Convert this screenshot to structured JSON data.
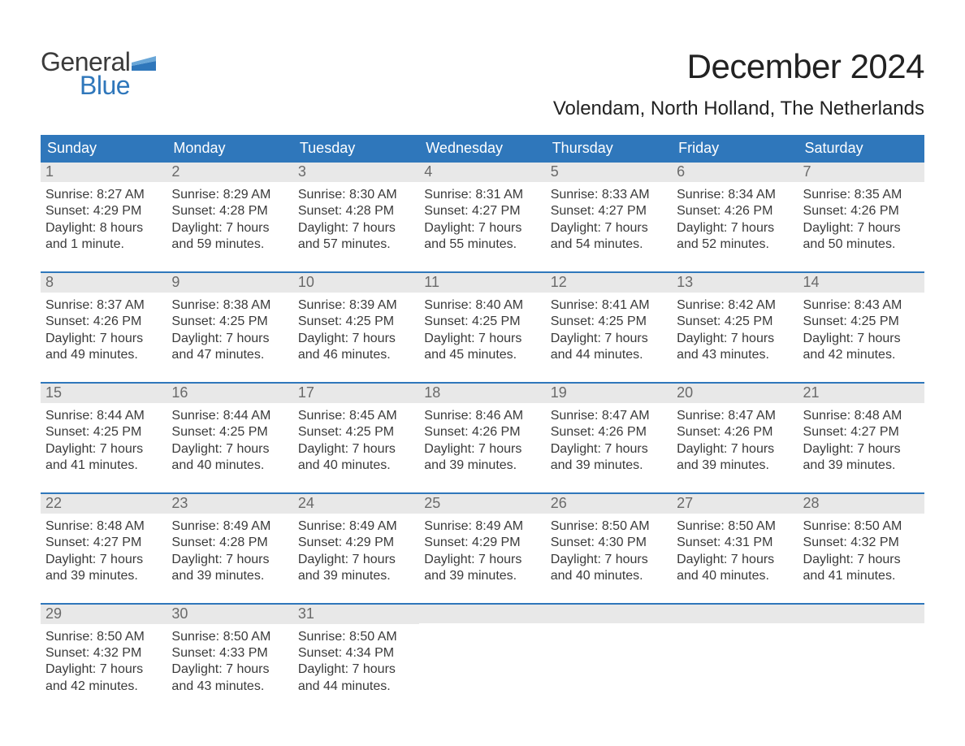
{
  "brand": {
    "general": "General",
    "blue": "Blue",
    "flag_color": "#2f77bb"
  },
  "title": "December 2024",
  "location": "Volendam, North Holland, The Netherlands",
  "colors": {
    "header_bg": "#2f77bb",
    "header_text": "#ffffff",
    "daynum_bg": "#e8e8e8",
    "daynum_text": "#6a6a6a",
    "body_text": "#3a3a3a",
    "page_bg": "#ffffff",
    "week_divider": "#2f77bb"
  },
  "typography": {
    "title_fontsize": 42,
    "location_fontsize": 24,
    "header_fontsize": 18,
    "daynum_fontsize": 18,
    "detail_fontsize": 16,
    "font_family": "Arial"
  },
  "day_headers": [
    "Sunday",
    "Monday",
    "Tuesday",
    "Wednesday",
    "Thursday",
    "Friday",
    "Saturday"
  ],
  "days": [
    {
      "n": "1",
      "sunrise": "Sunrise: 8:27 AM",
      "sunset": "Sunset: 4:29 PM",
      "daylight1": "Daylight: 8 hours",
      "daylight2": "and 1 minute."
    },
    {
      "n": "2",
      "sunrise": "Sunrise: 8:29 AM",
      "sunset": "Sunset: 4:28 PM",
      "daylight1": "Daylight: 7 hours",
      "daylight2": "and 59 minutes."
    },
    {
      "n": "3",
      "sunrise": "Sunrise: 8:30 AM",
      "sunset": "Sunset: 4:28 PM",
      "daylight1": "Daylight: 7 hours",
      "daylight2": "and 57 minutes."
    },
    {
      "n": "4",
      "sunrise": "Sunrise: 8:31 AM",
      "sunset": "Sunset: 4:27 PM",
      "daylight1": "Daylight: 7 hours",
      "daylight2": "and 55 minutes."
    },
    {
      "n": "5",
      "sunrise": "Sunrise: 8:33 AM",
      "sunset": "Sunset: 4:27 PM",
      "daylight1": "Daylight: 7 hours",
      "daylight2": "and 54 minutes."
    },
    {
      "n": "6",
      "sunrise": "Sunrise: 8:34 AM",
      "sunset": "Sunset: 4:26 PM",
      "daylight1": "Daylight: 7 hours",
      "daylight2": "and 52 minutes."
    },
    {
      "n": "7",
      "sunrise": "Sunrise: 8:35 AM",
      "sunset": "Sunset: 4:26 PM",
      "daylight1": "Daylight: 7 hours",
      "daylight2": "and 50 minutes."
    },
    {
      "n": "8",
      "sunrise": "Sunrise: 8:37 AM",
      "sunset": "Sunset: 4:26 PM",
      "daylight1": "Daylight: 7 hours",
      "daylight2": "and 49 minutes."
    },
    {
      "n": "9",
      "sunrise": "Sunrise: 8:38 AM",
      "sunset": "Sunset: 4:25 PM",
      "daylight1": "Daylight: 7 hours",
      "daylight2": "and 47 minutes."
    },
    {
      "n": "10",
      "sunrise": "Sunrise: 8:39 AM",
      "sunset": "Sunset: 4:25 PM",
      "daylight1": "Daylight: 7 hours",
      "daylight2": "and 46 minutes."
    },
    {
      "n": "11",
      "sunrise": "Sunrise: 8:40 AM",
      "sunset": "Sunset: 4:25 PM",
      "daylight1": "Daylight: 7 hours",
      "daylight2": "and 45 minutes."
    },
    {
      "n": "12",
      "sunrise": "Sunrise: 8:41 AM",
      "sunset": "Sunset: 4:25 PM",
      "daylight1": "Daylight: 7 hours",
      "daylight2": "and 44 minutes."
    },
    {
      "n": "13",
      "sunrise": "Sunrise: 8:42 AM",
      "sunset": "Sunset: 4:25 PM",
      "daylight1": "Daylight: 7 hours",
      "daylight2": "and 43 minutes."
    },
    {
      "n": "14",
      "sunrise": "Sunrise: 8:43 AM",
      "sunset": "Sunset: 4:25 PM",
      "daylight1": "Daylight: 7 hours",
      "daylight2": "and 42 minutes."
    },
    {
      "n": "15",
      "sunrise": "Sunrise: 8:44 AM",
      "sunset": "Sunset: 4:25 PM",
      "daylight1": "Daylight: 7 hours",
      "daylight2": "and 41 minutes."
    },
    {
      "n": "16",
      "sunrise": "Sunrise: 8:44 AM",
      "sunset": "Sunset: 4:25 PM",
      "daylight1": "Daylight: 7 hours",
      "daylight2": "and 40 minutes."
    },
    {
      "n": "17",
      "sunrise": "Sunrise: 8:45 AM",
      "sunset": "Sunset: 4:25 PM",
      "daylight1": "Daylight: 7 hours",
      "daylight2": "and 40 minutes."
    },
    {
      "n": "18",
      "sunrise": "Sunrise: 8:46 AM",
      "sunset": "Sunset: 4:26 PM",
      "daylight1": "Daylight: 7 hours",
      "daylight2": "and 39 minutes."
    },
    {
      "n": "19",
      "sunrise": "Sunrise: 8:47 AM",
      "sunset": "Sunset: 4:26 PM",
      "daylight1": "Daylight: 7 hours",
      "daylight2": "and 39 minutes."
    },
    {
      "n": "20",
      "sunrise": "Sunrise: 8:47 AM",
      "sunset": "Sunset: 4:26 PM",
      "daylight1": "Daylight: 7 hours",
      "daylight2": "and 39 minutes."
    },
    {
      "n": "21",
      "sunrise": "Sunrise: 8:48 AM",
      "sunset": "Sunset: 4:27 PM",
      "daylight1": "Daylight: 7 hours",
      "daylight2": "and 39 minutes."
    },
    {
      "n": "22",
      "sunrise": "Sunrise: 8:48 AM",
      "sunset": "Sunset: 4:27 PM",
      "daylight1": "Daylight: 7 hours",
      "daylight2": "and 39 minutes."
    },
    {
      "n": "23",
      "sunrise": "Sunrise: 8:49 AM",
      "sunset": "Sunset: 4:28 PM",
      "daylight1": "Daylight: 7 hours",
      "daylight2": "and 39 minutes."
    },
    {
      "n": "24",
      "sunrise": "Sunrise: 8:49 AM",
      "sunset": "Sunset: 4:29 PM",
      "daylight1": "Daylight: 7 hours",
      "daylight2": "and 39 minutes."
    },
    {
      "n": "25",
      "sunrise": "Sunrise: 8:49 AM",
      "sunset": "Sunset: 4:29 PM",
      "daylight1": "Daylight: 7 hours",
      "daylight2": "and 39 minutes."
    },
    {
      "n": "26",
      "sunrise": "Sunrise: 8:50 AM",
      "sunset": "Sunset: 4:30 PM",
      "daylight1": "Daylight: 7 hours",
      "daylight2": "and 40 minutes."
    },
    {
      "n": "27",
      "sunrise": "Sunrise: 8:50 AM",
      "sunset": "Sunset: 4:31 PM",
      "daylight1": "Daylight: 7 hours",
      "daylight2": "and 40 minutes."
    },
    {
      "n": "28",
      "sunrise": "Sunrise: 8:50 AM",
      "sunset": "Sunset: 4:32 PM",
      "daylight1": "Daylight: 7 hours",
      "daylight2": "and 41 minutes."
    },
    {
      "n": "29",
      "sunrise": "Sunrise: 8:50 AM",
      "sunset": "Sunset: 4:32 PM",
      "daylight1": "Daylight: 7 hours",
      "daylight2": "and 42 minutes."
    },
    {
      "n": "30",
      "sunrise": "Sunrise: 8:50 AM",
      "sunset": "Sunset: 4:33 PM",
      "daylight1": "Daylight: 7 hours",
      "daylight2": "and 43 minutes."
    },
    {
      "n": "31",
      "sunrise": "Sunrise: 8:50 AM",
      "sunset": "Sunset: 4:34 PM",
      "daylight1": "Daylight: 7 hours",
      "daylight2": "and 44 minutes."
    }
  ],
  "layout": {
    "first_day_column": 0,
    "total_days": 31,
    "columns": 7
  }
}
